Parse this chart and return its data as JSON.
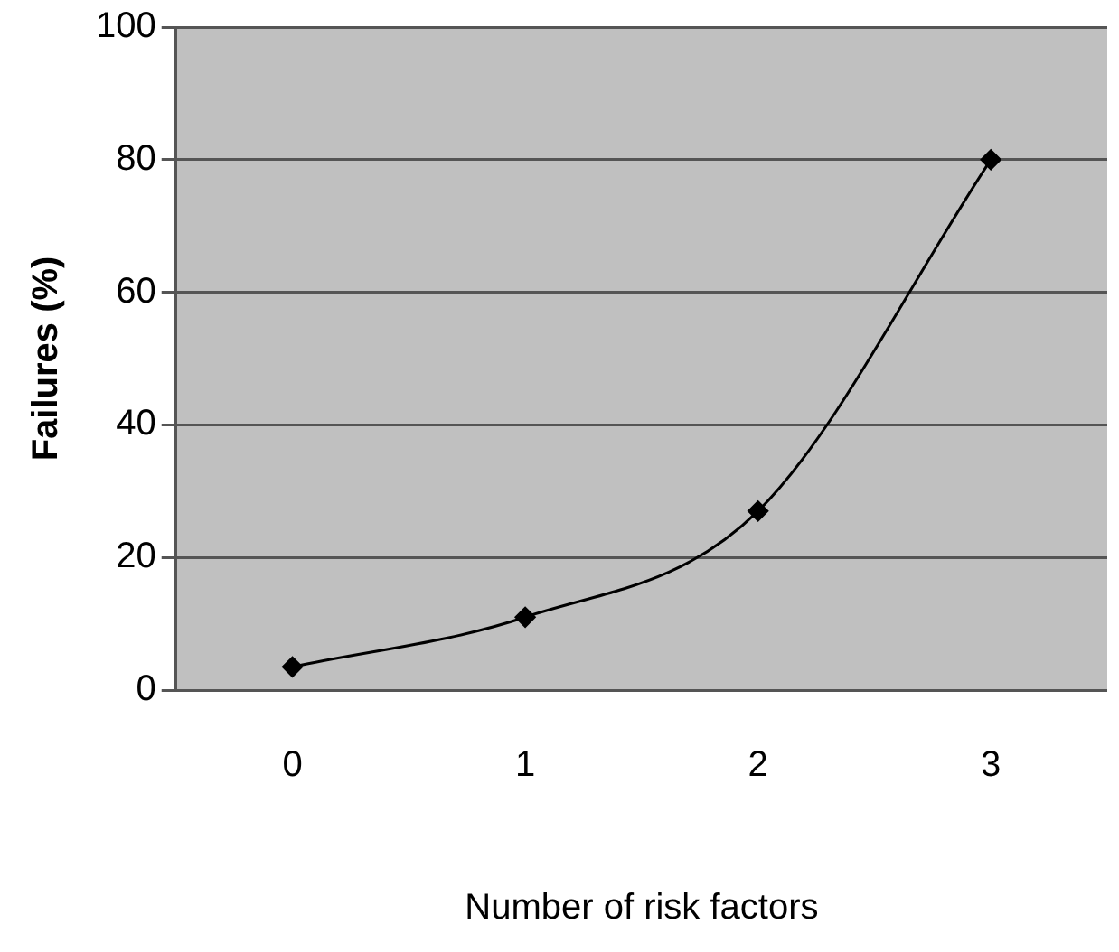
{
  "chart_data": {
    "type": "line",
    "xlabel": "Number of risk factors",
    "ylabel": "Failures (%)",
    "categories": [
      "0",
      "1",
      "2",
      "3"
    ],
    "series": [
      {
        "color": "#000000",
        "values": [
          3.5,
          11,
          27,
          80
        ]
      }
    ],
    "ylim": [
      0,
      100
    ],
    "yticks": [
      0,
      20,
      40,
      60,
      80,
      100
    ],
    "grid": "y",
    "marker": "diamond",
    "line_style": "solid",
    "legend": false
  }
}
